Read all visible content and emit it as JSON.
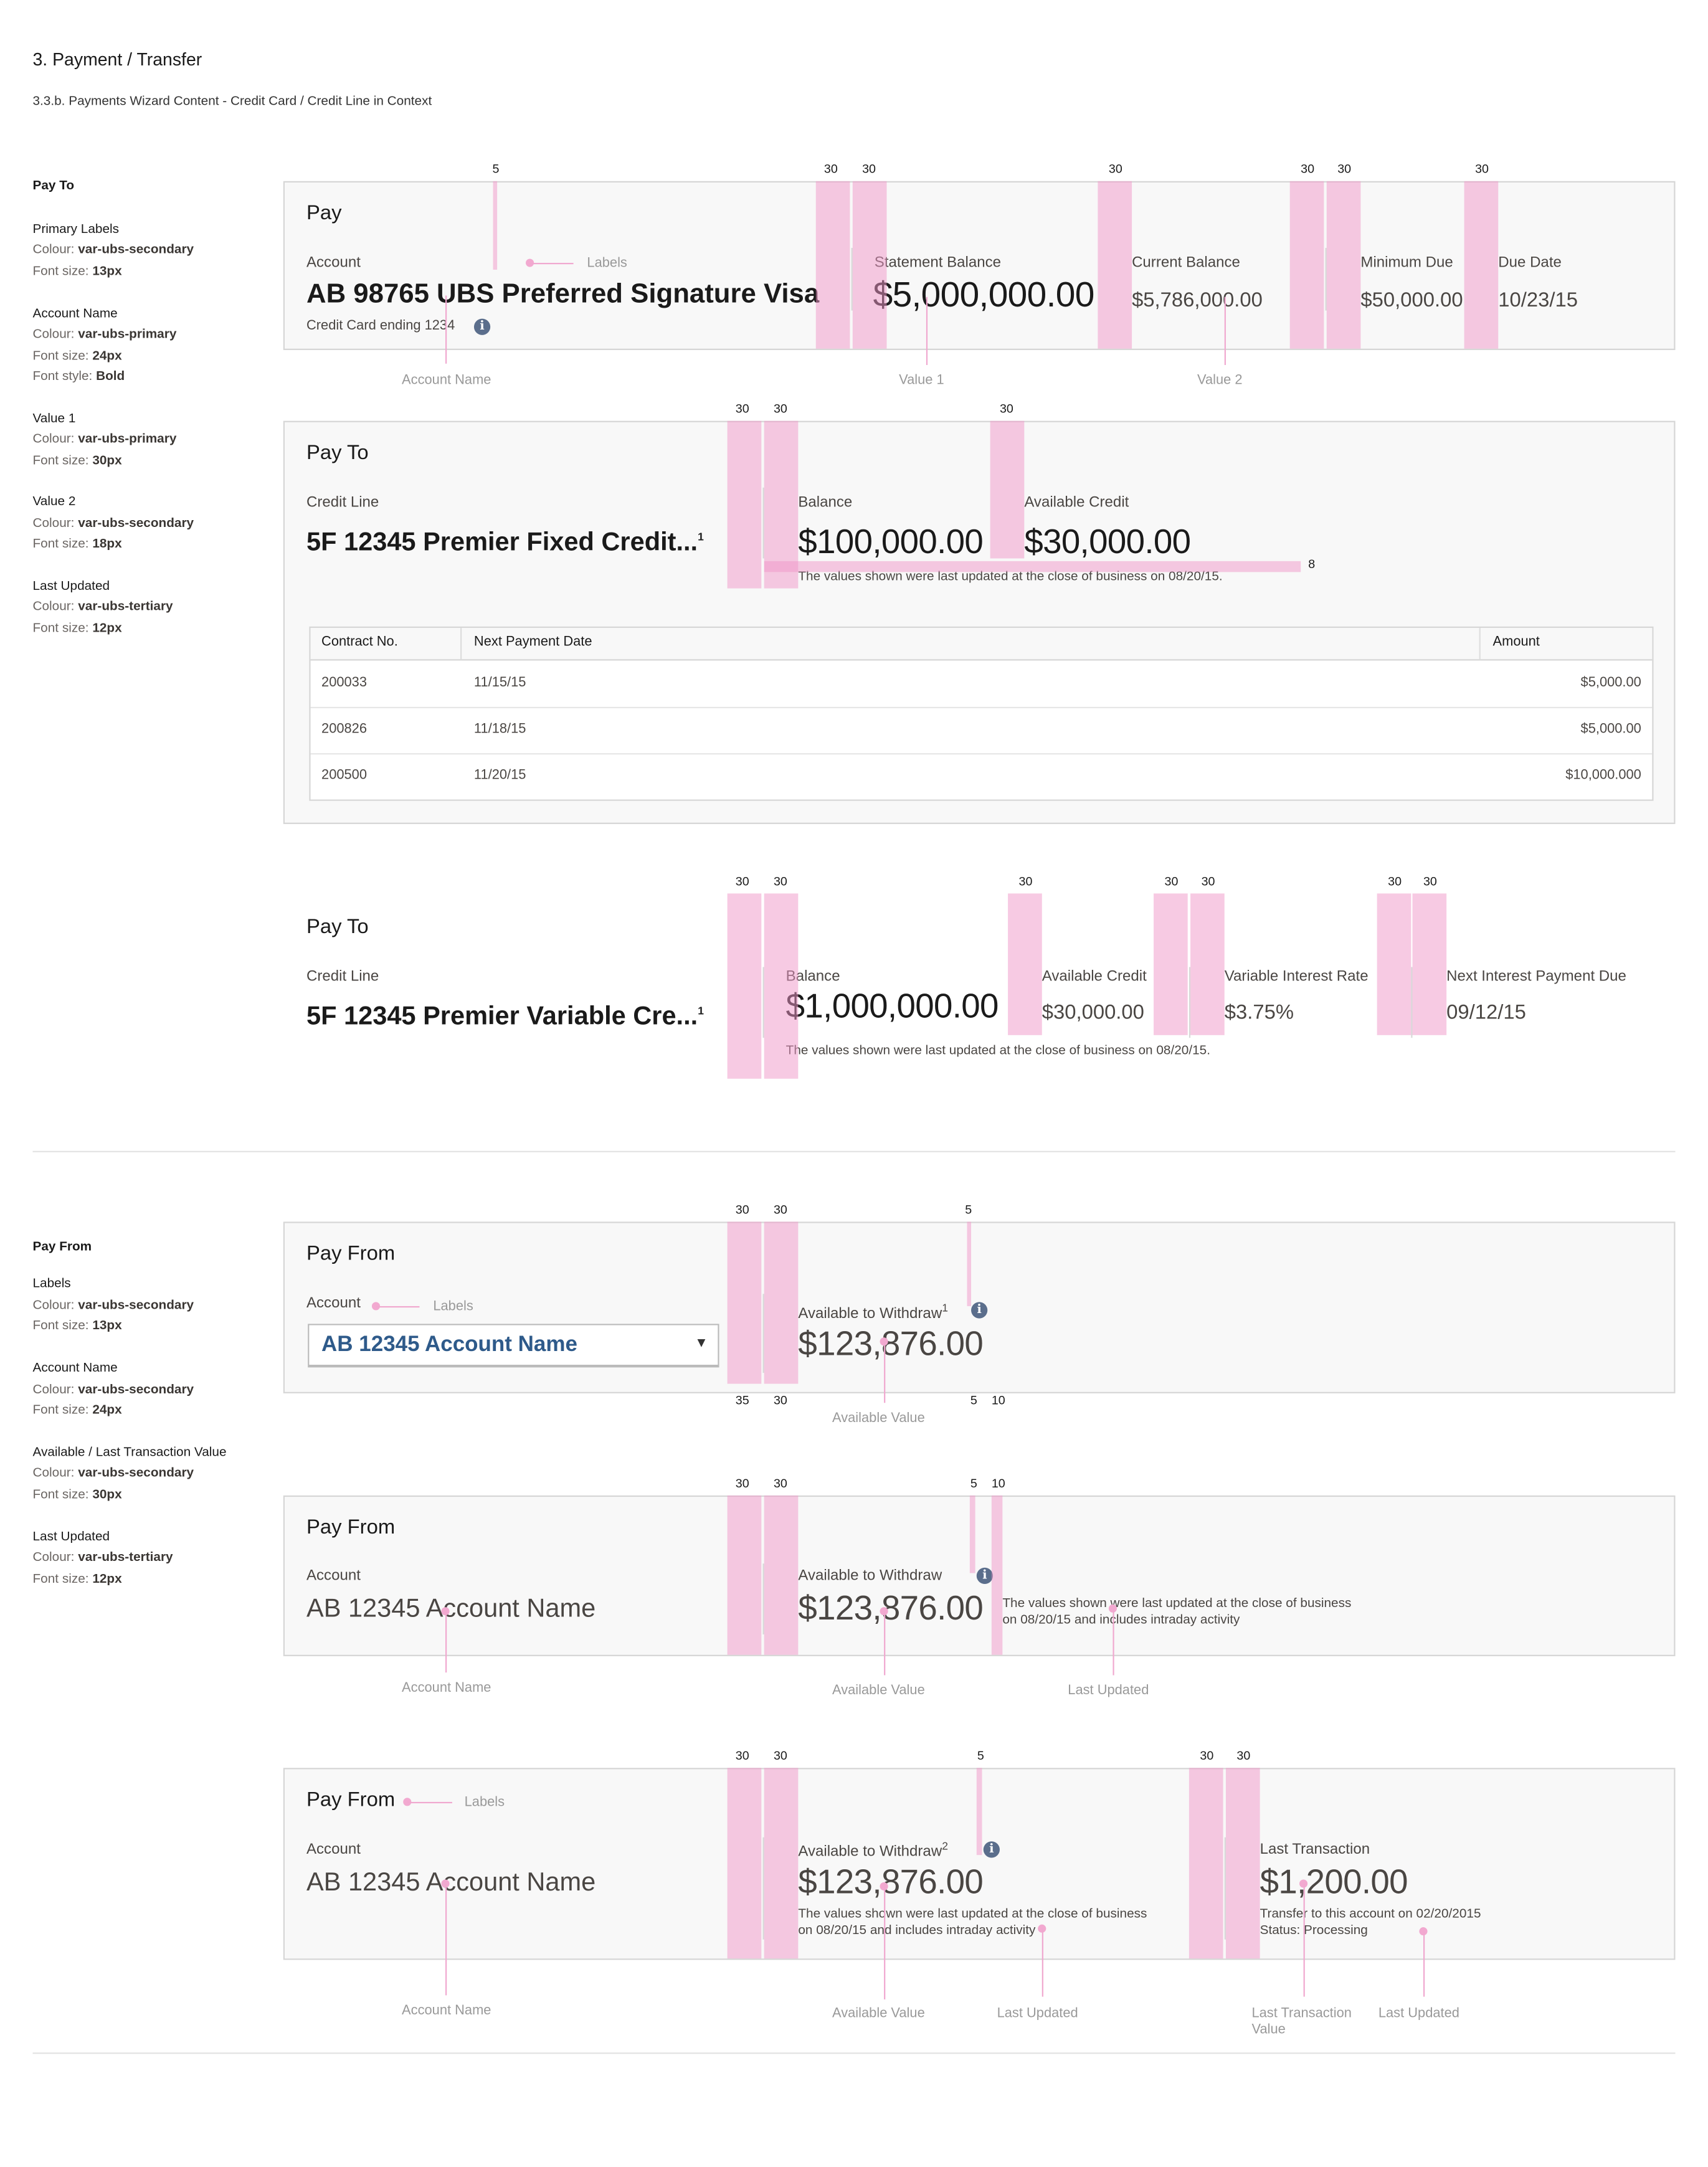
{
  "header": {
    "title": "3. Payment / Transfer",
    "subtitle": "3.3.b. Payments Wizard Content - Credit Card / Credit Line in Context"
  },
  "spec": {
    "keys": {
      "colour": "Colour:",
      "size": "Font size:",
      "style": "Font style:"
    },
    "pay_to": {
      "heading": "Pay To",
      "groups": [
        {
          "name": "Primary Labels",
          "colour": "var-ubs-secondary",
          "size": "13px"
        },
        {
          "name": "Account Name",
          "colour": "var-ubs-primary",
          "size": "24px",
          "style": "Bold"
        },
        {
          "name": "Value 1",
          "colour": "var-ubs-primary",
          "size": "30px"
        },
        {
          "name": "Value 2",
          "colour": "var-ubs-secondary",
          "size": "18px"
        },
        {
          "name": "Last Updated",
          "colour": "var-ubs-tertiary",
          "size": "12px"
        }
      ]
    },
    "pay_from": {
      "heading": "Pay From",
      "groups": [
        {
          "name": "Labels",
          "colour": "var-ubs-secondary",
          "size": "13px"
        },
        {
          "name": "Account Name",
          "colour": "var-ubs-secondary",
          "size": "24px"
        },
        {
          "name": "Available / Last Transaction Value",
          "colour": "var-ubs-secondary",
          "size": "30px"
        },
        {
          "name": "Last Updated",
          "colour": "var-ubs-tertiary",
          "size": "12px"
        }
      ]
    }
  },
  "colors": {
    "guide": "#f7c9e2",
    "info": "#5b6e8c",
    "link_blue": "#2e5a8a"
  },
  "card1": {
    "title": "Pay",
    "account_label": "Account",
    "account_name": "AB 98765 UBS Preferred Signature Visa",
    "account_sub": "Credit Card ending 1234",
    "fields": [
      {
        "label": "Statement Balance",
        "value": "$5,000,000.00"
      },
      {
        "label": "Current Balance",
        "value": "$5,786,000.00"
      },
      {
        "label": "Minimum Due",
        "value": "$50,000.00"
      },
      {
        "label": "Due Date",
        "value": "10/23/15"
      }
    ],
    "annotations": {
      "labels": "Labels",
      "account_name": "Account Name",
      "value1": "Value 1",
      "value2": "Value 2"
    },
    "spacing": [
      "5",
      "30",
      "30",
      "30",
      "30",
      "30",
      "30"
    ]
  },
  "card2": {
    "title": "Pay To",
    "account_label": "Credit Line",
    "account_name": "5F 12345 Premier Fixed Credit...",
    "footnote_mark": "1",
    "fields": [
      {
        "label": "Balance",
        "value": "$100,000.00"
      },
      {
        "label": "Available Credit",
        "value": "$30,000.00"
      }
    ],
    "last_updated": "The values shown were last updated at the close of business on 08/20/15.",
    "spacing": [
      "30",
      "30",
      "30",
      "8"
    ],
    "table": {
      "headers": [
        "Contract No.",
        "Next Payment Date",
        "Amount"
      ],
      "rows": [
        [
          "200033",
          "11/15/15",
          "$5,000.00"
        ],
        [
          "200826",
          "11/18/15",
          "$5,000.00"
        ],
        [
          "200500",
          "11/20/15",
          "$10,000.000"
        ]
      ]
    }
  },
  "card3": {
    "title": "Pay To",
    "account_label": "Credit Line",
    "account_name": "5F 12345 Premier Variable Cre...",
    "footnote_mark": "1",
    "fields": [
      {
        "label": "Balance",
        "value": "$1,000,000.00"
      },
      {
        "label": "Available Credit",
        "value": "$30,000.00"
      },
      {
        "label": "Variable Interest Rate",
        "value": "$3.75%"
      },
      {
        "label": "Next Interest Payment Due",
        "value": "09/12/15"
      }
    ],
    "last_updated": "The values shown were last updated at the close of business on 08/20/15.",
    "spacing": [
      "30",
      "30",
      "30",
      "30",
      "30",
      "30",
      "30"
    ]
  },
  "card4": {
    "title": "Pay From",
    "account_label": "Account",
    "selected_account": "AB 12345 Account Name",
    "available_label": "Available to Withdraw",
    "footnote_mark": "1",
    "available_value": "$123,876.00",
    "annotations": {
      "labels": "Labels",
      "available_value": "Available Value"
    },
    "spacing_top": [
      "30",
      "30",
      "5"
    ],
    "spacing_bottom": [
      "35",
      "30",
      "5",
      "10"
    ]
  },
  "card5": {
    "title": "Pay From",
    "account_label": "Account",
    "account_name": "AB 12345 Account Name",
    "available_label": "Available to Withdraw",
    "available_value": "$123,876.00",
    "last_updated_1": "The values shown were last updated at the close of business",
    "last_updated_2": "on 08/20/15 and includes intraday activity",
    "annotations": {
      "account_name": "Account Name",
      "available_value": "Available Value",
      "last_updated": "Last Updated"
    },
    "spacing": [
      "30",
      "30",
      "5",
      "10"
    ]
  },
  "card6": {
    "title": "Pay From",
    "account_label": "Account",
    "account_name": "AB 12345 Account Name",
    "available_label": "Available to Withdraw",
    "footnote_mark": "2",
    "available_value": "$123,876.00",
    "last_updated_1": "The values shown were last updated at the close of business",
    "last_updated_2": "on 08/20/15 and includes intraday activity",
    "last_txn_label": "Last Transaction",
    "last_txn_value": "$1,200.00",
    "last_txn_desc": "Transfer to this account on 02/20/2015",
    "last_txn_status": "Status: Processing",
    "annotations": {
      "labels": "Labels",
      "account_name": "Account Name",
      "available_value": "Available Value",
      "last_updated": "Last Updated",
      "last_txn_value_1": "Last Transaction",
      "last_txn_value_2": "Value",
      "last_updated_2": "Last Updated"
    },
    "spacing": [
      "30",
      "30",
      "5",
      "30",
      "30"
    ]
  }
}
